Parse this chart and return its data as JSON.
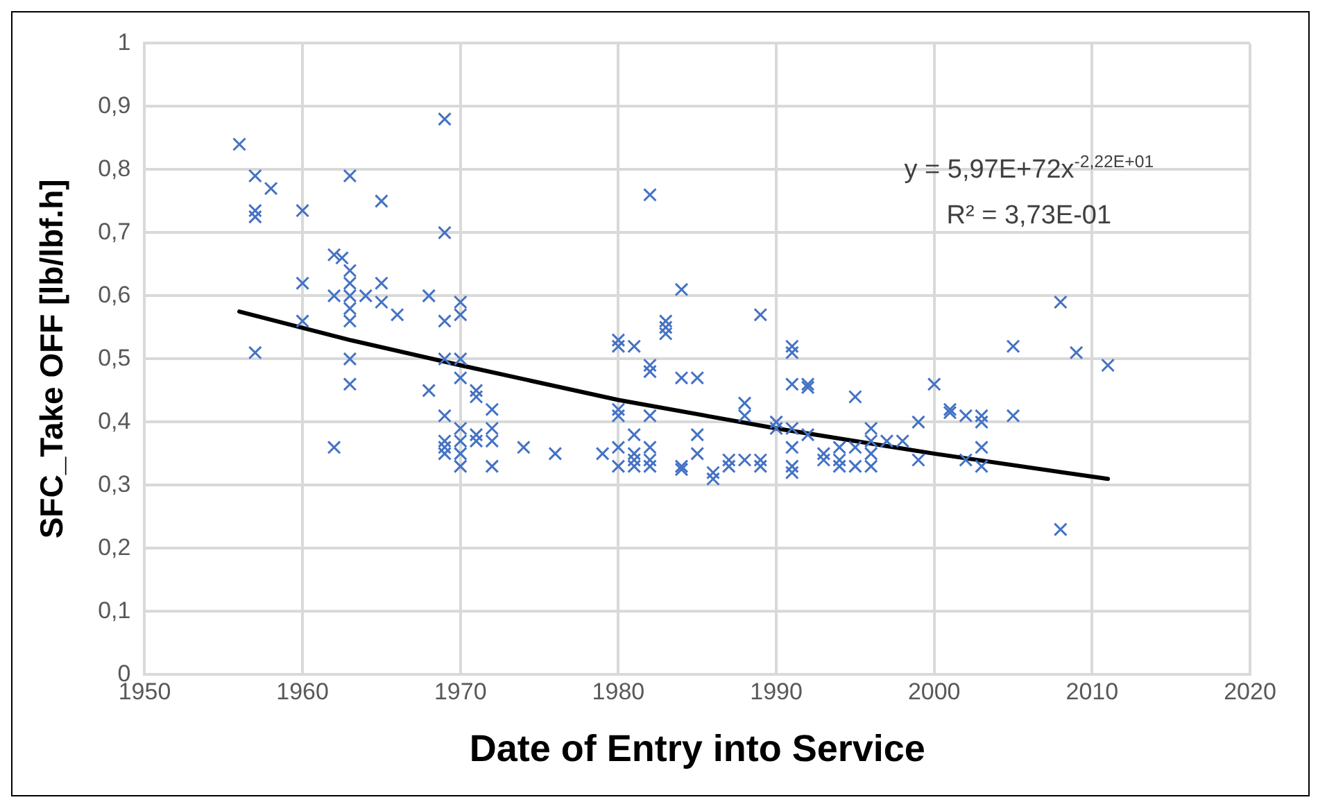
{
  "chart_data": {
    "type": "scatter",
    "xlabel": "Date of Entry into Service",
    "ylabel": "SFC_Take OFF [lb/lbf.h]",
    "xlim": [
      1950,
      2020
    ],
    "xticks": [
      1950,
      1960,
      1970,
      1980,
      1990,
      2000,
      2010,
      2020
    ],
    "ylim": [
      0,
      1
    ],
    "yticks": [
      0,
      {
        "value": 0.1,
        "label": "0,1"
      },
      {
        "value": 0.2,
        "label": "0,2"
      },
      {
        "value": 0.3,
        "label": "0,3"
      },
      {
        "value": 0.4,
        "label": "0,4"
      },
      {
        "value": 0.5,
        "label": "0,5"
      },
      {
        "value": 0.6,
        "label": "0,6"
      },
      {
        "value": 0.7,
        "label": "0,7"
      },
      {
        "value": 0.8,
        "label": "0,8"
      },
      {
        "value": 0.9,
        "label": "0,9"
      },
      1
    ],
    "grid": true,
    "legend": false,
    "marker": "cross",
    "annotations": [
      "y = 5,97E+72x$^{-2,22E+01}$",
      "R² = 3,73E-01"
    ],
    "series": [
      {
        "color": "#4472c4",
        "x": [
          1956,
          1957,
          1958,
          1957,
          1957,
          1960,
          1957,
          1960,
          1960,
          1962,
          1962.5,
          1963,
          1962,
          1963,
          1963,
          1963,
          1963,
          1963,
          1964,
          1965,
          1965,
          1965,
          1966,
          1963,
          1963,
          1962,
          1968,
          1969,
          1969,
          1969,
          1970,
          1970,
          1969,
          1970,
          1968,
          1969,
          1970,
          1971,
          1971,
          1972,
          1969,
          1969,
          1969,
          1970,
          1970,
          1970,
          1970,
          1971,
          1971,
          1972,
          1972,
          1972,
          1974,
          1976,
          1979,
          1980,
          1980,
          1980,
          1980,
          1980,
          1980,
          1981,
          1981,
          1981,
          1981,
          1981,
          1982,
          1982,
          1982,
          1982,
          1982,
          1982,
          1982,
          1983,
          1983,
          1983,
          1984,
          1984,
          1985,
          1984,
          1984,
          1985,
          1985,
          1986,
          1986,
          1987,
          1987,
          1988,
          1988,
          1988,
          1989,
          1989,
          1989,
          1990,
          1990,
          1991,
          1991,
          1991,
          1991,
          1991,
          1991,
          1991,
          1992,
          1992,
          1992,
          1993,
          1993,
          1994,
          1994,
          1994,
          1995,
          1995,
          1995,
          1996,
          1996,
          1996,
          1996,
          1997,
          1998,
          1999,
          1999,
          2000,
          2001,
          2001,
          2002,
          2002,
          2003,
          2003,
          2003,
          2003,
          2005,
          2005,
          2008,
          2008,
          2009,
          2011
        ],
        "values": [
          0.84,
          0.79,
          0.77,
          0.735,
          0.725,
          0.735,
          0.51,
          0.62,
          0.56,
          0.665,
          0.66,
          0.79,
          0.6,
          0.64,
          0.62,
          0.6,
          0.58,
          0.56,
          0.6,
          0.62,
          0.75,
          0.59,
          0.57,
          0.5,
          0.46,
          0.36,
          0.6,
          0.88,
          0.7,
          0.56,
          0.59,
          0.57,
          0.5,
          0.5,
          0.45,
          0.41,
          0.47,
          0.45,
          0.44,
          0.42,
          0.37,
          0.36,
          0.35,
          0.39,
          0.37,
          0.35,
          0.33,
          0.38,
          0.37,
          0.39,
          0.37,
          0.33,
          0.36,
          0.35,
          0.35,
          0.53,
          0.52,
          0.42,
          0.41,
          0.36,
          0.33,
          0.52,
          0.38,
          0.35,
          0.34,
          0.33,
          0.76,
          0.49,
          0.48,
          0.41,
          0.36,
          0.34,
          0.33,
          0.56,
          0.55,
          0.54,
          0.61,
          0.47,
          0.47,
          0.33,
          0.325,
          0.38,
          0.35,
          0.32,
          0.31,
          0.33,
          0.34,
          0.43,
          0.41,
          0.34,
          0.57,
          0.33,
          0.34,
          0.4,
          0.39,
          0.52,
          0.51,
          0.46,
          0.39,
          0.36,
          0.33,
          0.32,
          0.46,
          0.455,
          0.38,
          0.35,
          0.34,
          0.36,
          0.34,
          0.33,
          0.44,
          0.33,
          0.36,
          0.39,
          0.37,
          0.35,
          0.33,
          0.37,
          0.37,
          0.4,
          0.34,
          0.46,
          0.42,
          0.415,
          0.41,
          0.34,
          0.41,
          0.4,
          0.36,
          0.33,
          0.52,
          0.41,
          0.59,
          0.23,
          0.51,
          0.49
        ]
      },
      {
        "type": "line",
        "color": "#000000",
        "marker": "none",
        "x": [
          1956,
          1963,
          1970,
          1980,
          1990,
          2000,
          2011
        ],
        "values": [
          0.575,
          0.53,
          0.49,
          0.435,
          0.39,
          0.35,
          0.31
        ]
      }
    ]
  }
}
